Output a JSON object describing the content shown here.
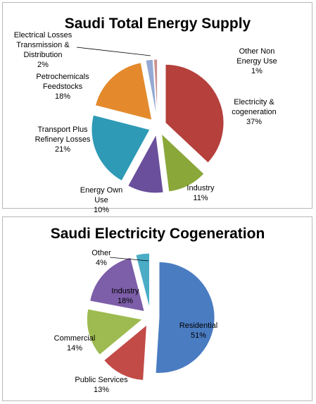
{
  "chart_data": [
    {
      "type": "pie",
      "title": "Saudi Total Energy Supply",
      "start_angle_deg": 0,
      "slices": [
        {
          "label_lines": [
            "Electricity &",
            "cogeneration",
            "37%"
          ],
          "value": 37,
          "color": "#b5403c"
        },
        {
          "label_lines": [
            "Industry",
            "11%"
          ],
          "value": 11,
          "color": "#8aa83a"
        },
        {
          "label_lines": [
            "Energy Own",
            "Use",
            "10%"
          ],
          "value": 10,
          "color": "#6a4f9c"
        },
        {
          "label_lines": [
            "Transport Plus",
            "Refinery Losses",
            "21%"
          ],
          "value": 21,
          "color": "#2e9ab6"
        },
        {
          "label_lines": [
            "Petrochemicals",
            "Feedstocks",
            "18%"
          ],
          "value": 18,
          "color": "#e48a2c"
        },
        {
          "label_lines": [
            "Electrical Losses",
            "Transmission &",
            "Distribution",
            "2%"
          ],
          "value": 2,
          "color": "#95a9d3"
        },
        {
          "label_lines": [
            "Other Non",
            "Energy Use",
            "1%"
          ],
          "value": 1,
          "color": "#c9908e"
        }
      ]
    },
    {
      "type": "pie",
      "title": "Saudi Electricity Cogeneration",
      "start_angle_deg": 0,
      "slices": [
        {
          "label_lines": [
            "Residential",
            "51%"
          ],
          "value": 51,
          "color": "#4a7cc1"
        },
        {
          "label_lines": [
            "Public Services",
            "13%"
          ],
          "value": 13,
          "color": "#c24b47"
        },
        {
          "label_lines": [
            "Commercial",
            "14%"
          ],
          "value": 14,
          "color": "#9dbb50"
        },
        {
          "label_lines": [
            "Industry",
            "18%"
          ],
          "value": 18,
          "color": "#7d5ea8"
        },
        {
          "label_lines": [
            "Other",
            "4%"
          ],
          "value": 4,
          "color": "#4bacc6"
        }
      ]
    }
  ]
}
